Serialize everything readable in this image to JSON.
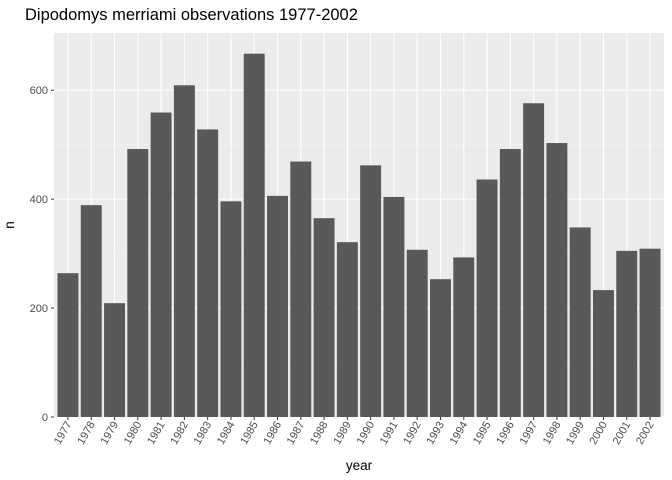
{
  "chart_data": {
    "type": "bar",
    "title": "Dipodomys merriami observations 1977-2002",
    "xlabel": "year",
    "ylabel": "n",
    "categories": [
      "1977",
      "1978",
      "1979",
      "1980",
      "1981",
      "1982",
      "1983",
      "1984",
      "1985",
      "1986",
      "1987",
      "1988",
      "1989",
      "1990",
      "1991",
      "1992",
      "1993",
      "1994",
      "1995",
      "1996",
      "1997",
      "1998",
      "1999",
      "2000",
      "2001",
      "2002"
    ],
    "values": [
      264,
      389,
      209,
      492,
      559,
      609,
      528,
      396,
      667,
      406,
      469,
      365,
      321,
      462,
      404,
      307,
      253,
      293,
      436,
      492,
      576,
      503,
      348,
      233,
      305,
      309
    ],
    "ylim": [
      0,
      705
    ],
    "yticks": [
      0,
      200,
      400,
      600
    ],
    "grid": true,
    "colors": {
      "panel": "#ebebeb",
      "bar": "#595959",
      "grid_major": "#ffffff",
      "grid_minor": "#f5f5f5"
    }
  }
}
